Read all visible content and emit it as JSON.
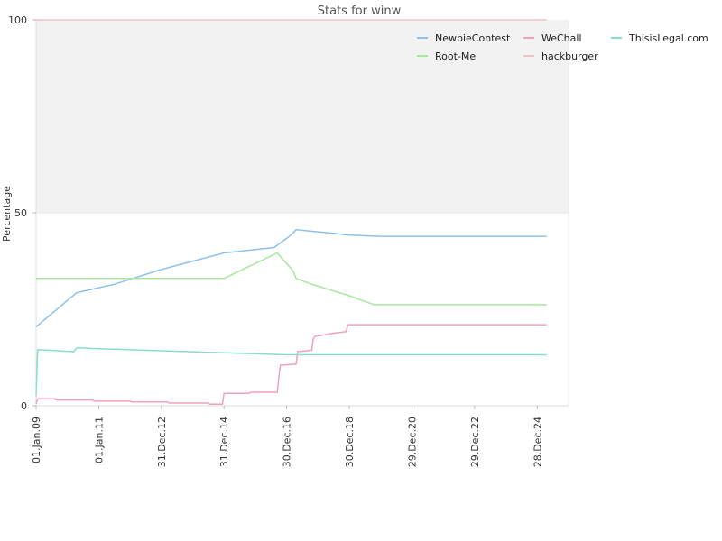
{
  "chart_data": {
    "type": "line",
    "title": "Stats for winw",
    "xlabel": "",
    "ylabel": "Percentage",
    "ylim": [
      0,
      100
    ],
    "y_ticks": [
      0,
      50,
      100
    ],
    "x_ticks": [
      "01.Jan.09",
      "01.Jan.11",
      "31.Dec.12",
      "31.Dec.14",
      "30.Dec.16",
      "30.Dec.18",
      "29.Dec.20",
      "29.Dec.22",
      "28.Dec.24"
    ],
    "x_tick_years": [
      2009.0,
      2011.0,
      2013.0,
      2015.0,
      2017.0,
      2019.0,
      2021.0,
      2023.0,
      2025.0
    ],
    "xlim": [
      2009.0,
      2026.0
    ],
    "grid": false,
    "upper_band": [
      50,
      100
    ],
    "legend_position": "top-right",
    "series": [
      {
        "name": "NewbieContest",
        "color": "#8ec2ea",
        "points": [
          [
            2009.0,
            20.5
          ],
          [
            2010.3,
            29.3
          ],
          [
            2011.5,
            31.5
          ],
          [
            2013.0,
            35.3
          ],
          [
            2015.0,
            39.6
          ],
          [
            2016.6,
            41.0
          ],
          [
            2017.1,
            44.0
          ],
          [
            2017.3,
            45.6
          ],
          [
            2017.7,
            45.3
          ],
          [
            2018.5,
            44.7
          ],
          [
            2019.0,
            44.2
          ],
          [
            2020.0,
            43.9
          ],
          [
            2025.3,
            43.9
          ]
        ]
      },
      {
        "name": "Root-Me",
        "color": "#a9e7a0",
        "points": [
          [
            2009.0,
            33.0
          ],
          [
            2011.0,
            33.0
          ],
          [
            2013.0,
            33.0
          ],
          [
            2015.0,
            33.0
          ],
          [
            2016.7,
            39.6
          ],
          [
            2017.2,
            35.0
          ],
          [
            2017.3,
            33.0
          ],
          [
            2017.8,
            31.5
          ],
          [
            2019.0,
            28.5
          ],
          [
            2019.5,
            27.0
          ],
          [
            2019.8,
            26.2
          ],
          [
            2025.3,
            26.2
          ]
        ]
      },
      {
        "name": "WeChall",
        "color": "#f0a0c0",
        "points": [
          [
            2009.0,
            0.5
          ],
          [
            2009.05,
            1.8
          ],
          [
            2009.6,
            1.8
          ],
          [
            2009.65,
            1.5
          ],
          [
            2010.8,
            1.5
          ],
          [
            2010.85,
            1.2
          ],
          [
            2012.0,
            1.2
          ],
          [
            2012.05,
            1.0
          ],
          [
            2013.2,
            1.0
          ],
          [
            2013.25,
            0.7
          ],
          [
            2014.5,
            0.7
          ],
          [
            2014.55,
            0.4
          ],
          [
            2014.95,
            0.4
          ],
          [
            2015.0,
            3.2
          ],
          [
            2015.8,
            3.2
          ],
          [
            2015.85,
            3.5
          ],
          [
            2016.7,
            3.5
          ],
          [
            2016.75,
            7.5
          ],
          [
            2016.8,
            10.5
          ],
          [
            2017.3,
            10.8
          ],
          [
            2017.35,
            14.0
          ],
          [
            2017.8,
            14.4
          ],
          [
            2017.85,
            17.3
          ],
          [
            2017.9,
            18.0
          ],
          [
            2018.5,
            18.8
          ],
          [
            2018.9,
            19.2
          ],
          [
            2018.95,
            21.0
          ],
          [
            2025.3,
            21.0
          ]
        ]
      },
      {
        "name": "hackburger",
        "color": "#f4c0c8",
        "points": [
          [
            2009.0,
            100.0
          ],
          [
            2025.3,
            100.0
          ]
        ]
      },
      {
        "name": "ThisisLegal.com",
        "color": "#88ddd0",
        "points": [
          [
            2009.0,
            2.5
          ],
          [
            2009.05,
            14.5
          ],
          [
            2009.4,
            14.4
          ],
          [
            2010.2,
            14.0
          ],
          [
            2010.3,
            15.0
          ],
          [
            2011.0,
            14.8
          ],
          [
            2012.0,
            14.5
          ],
          [
            2014.0,
            14.0
          ],
          [
            2015.5,
            13.6
          ],
          [
            2017.0,
            13.2
          ],
          [
            2025.3,
            13.2
          ]
        ]
      }
    ]
  }
}
